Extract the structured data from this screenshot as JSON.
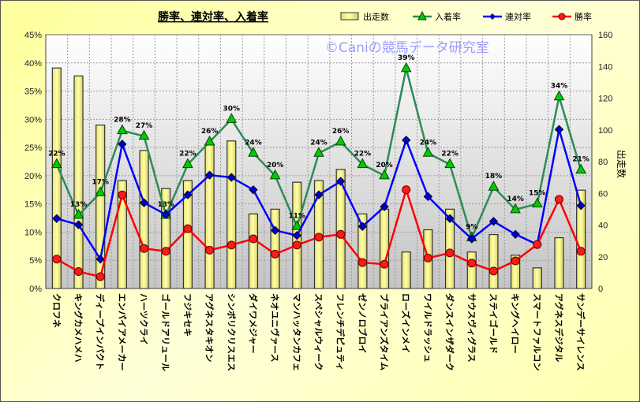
{
  "chart_data": {
    "type": "bar+line",
    "title": "勝率、連対率、入着率",
    "watermark": "©Caniの競馬データ研究室",
    "ylabel_right": "出走数",
    "ylim_left": [
      0,
      45
    ],
    "ylim_right": [
      0,
      160
    ],
    "left_ticks": [
      "0%",
      "5%",
      "10%",
      "15%",
      "20%",
      "25%",
      "30%",
      "35%",
      "40%",
      "45%"
    ],
    "right_ticks": [
      "0",
      "20",
      "40",
      "60",
      "80",
      "100",
      "120",
      "140",
      "160"
    ],
    "legend_position": "top-right",
    "grid": true,
    "categories": [
      "クロフネ",
      "キングカメハメハ",
      "ディープインパクト",
      "エンパイアメーカー",
      "ハーツクライ",
      "ゴールドアリュール",
      "フジキセキ",
      "アグネスタキオン",
      "シンボリクリスエス",
      "ダイワメジャー",
      "ネオユニヴァース",
      "マンハッタンカフェ",
      "スペシャルウィーク",
      "フレンチデピュティ",
      "ゼンノロブロイ",
      "ブライアンズタイム",
      "ローズインメイ",
      "ワイルドラッシュ",
      "ダンスインザダーク",
      "サウスヴィグラス",
      "ステイゴールド",
      "キングヘイロー",
      "スマートファルコン",
      "アグネスデジタル",
      "サンデーサイレンス"
    ],
    "series": [
      {
        "name": "出走数",
        "type": "bar",
        "axis": "right",
        "color": "#ffff99",
        "values": [
          139,
          134,
          103,
          68,
          87,
          63,
          68,
          91,
          93,
          47,
          50,
          67,
          68,
          75,
          47,
          50,
          23,
          37,
          50,
          23,
          34,
          21,
          13,
          32,
          62
        ]
      },
      {
        "name": "入着率",
        "type": "line",
        "axis": "left",
        "color": "#2e8b57",
        "marker": "triangle",
        "marker_color": "#00cc00",
        "values": [
          22,
          13,
          17,
          28,
          27,
          13,
          22,
          26,
          30,
          24,
          20,
          11,
          24,
          26,
          22,
          20,
          39,
          24,
          22,
          9,
          18,
          14,
          15,
          34,
          21
        ],
        "data_labels": [
          "22%",
          "13%",
          "17%",
          "28%",
          "27%",
          "13%",
          "22%",
          "26%",
          "30%",
          "24%",
          "20%",
          "11%",
          "24%",
          "26%",
          "22%",
          "20%",
          "39%",
          "24%",
          "22%",
          "9%",
          "18%",
          "14%",
          "15%",
          "34%",
          "21%"
        ]
      },
      {
        "name": "連対率",
        "type": "line",
        "axis": "left",
        "color": "#0000ff",
        "marker": "diamond",
        "values": [
          12.4,
          11.3,
          5.2,
          25.6,
          15.2,
          13.1,
          16.6,
          20.1,
          19.7,
          17.5,
          10.3,
          9.4,
          16.6,
          19.0,
          11.0,
          14.5,
          26.3,
          16.3,
          12.4,
          8.8,
          11.9,
          9.6,
          7.8,
          28.2,
          14.7
        ]
      },
      {
        "name": "勝率",
        "type": "line",
        "axis": "left",
        "color": "#ff0000",
        "marker": "circle",
        "values": [
          5.2,
          3.0,
          2.1,
          16.6,
          7.1,
          6.6,
          10.6,
          6.8,
          7.7,
          8.8,
          6.1,
          7.7,
          9.1,
          9.6,
          4.6,
          4.3,
          17.5,
          5.4,
          6.3,
          4.5,
          3.1,
          4.9,
          7.8,
          15.8,
          6.6
        ]
      }
    ]
  }
}
